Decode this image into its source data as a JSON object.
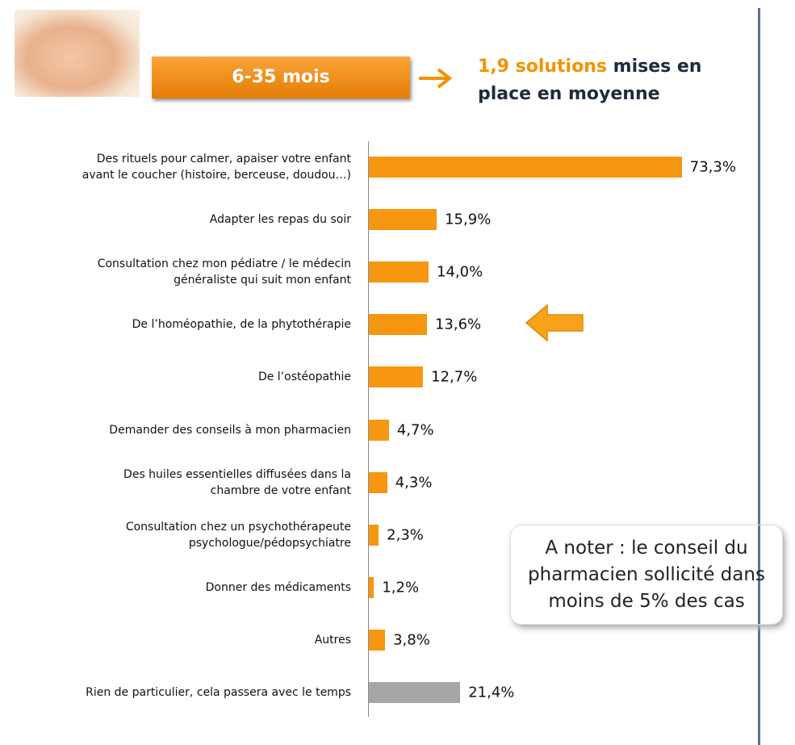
{
  "chart_data": {
    "type": "barh",
    "badge": "6-35 mois",
    "headline_highlight": "1,9 solutions",
    "headline_rest": "mises en place en moyenne",
    "note": "A noter : le conseil du pharmacien sollicité dans moins de 5% des cas",
    "categories": [
      "Des rituels pour calmer, apaiser votre enfant\navant le coucher (histoire, berceuse, doudou…)",
      "Adapter les repas du soir",
      "Consultation chez mon pédiatre / le médecin\ngénéraliste qui suit mon enfant",
      "De l’homéopathie, de la phytothérapie",
      "De l’ostéopathie",
      "Demander des conseils à mon pharmacien",
      "Des huiles essentielles diffusées dans la\nchambre de  votre enfant",
      "Consultation chez un psychothérapeute\npsychologue/pédopsychiatre",
      "Donner des médicaments",
      "Autres",
      "Rien de particulier, cela passera avec le temps"
    ],
    "values": [
      73.3,
      15.9,
      14.0,
      13.6,
      12.7,
      4.7,
      4.3,
      2.3,
      1.2,
      3.8,
      21.4
    ],
    "value_labels": [
      "73,3%",
      "15,9%",
      "14,0%",
      "13,6%",
      "12,7%",
      "4,7%",
      "4,3%",
      "2,3%",
      "1,2%",
      "3,8%",
      "21,4%"
    ],
    "colors": [
      "#f7960f",
      "#f7960f",
      "#f7960f",
      "#f7960f",
      "#f7960f",
      "#f7960f",
      "#f7960f",
      "#f7960f",
      "#f7960f",
      "#f7960f",
      "#a6a6a6"
    ]
  }
}
